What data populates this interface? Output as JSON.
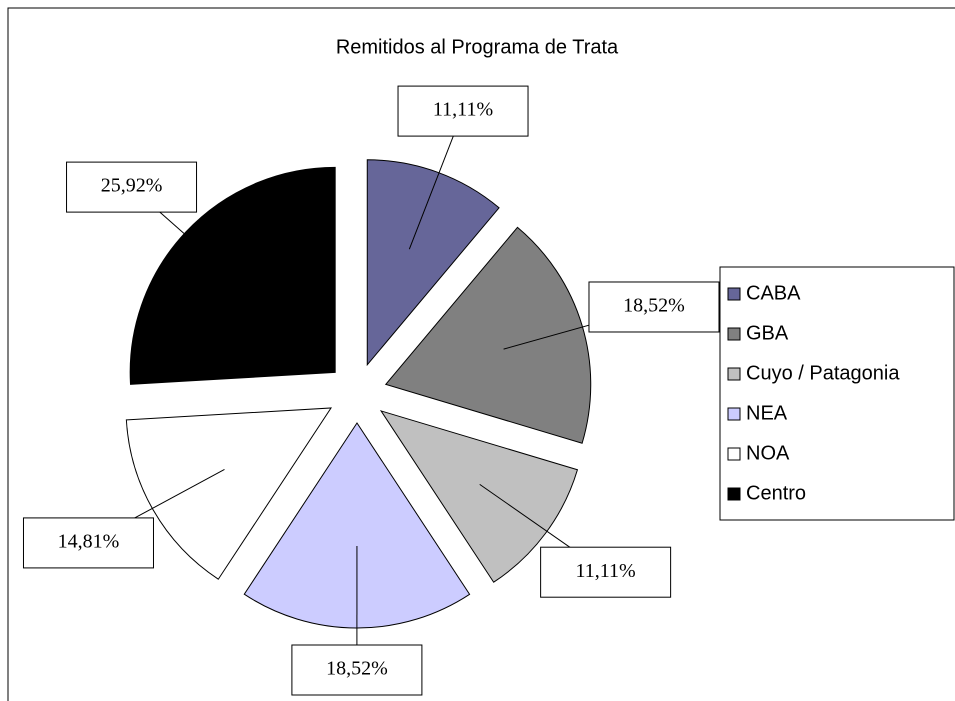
{
  "chart_data": {
    "type": "pie",
    "title": "Remitidos al Programa de Trata",
    "categories": [
      "CABA",
      "GBA",
      "Cuyo / Patagonia",
      "NEA",
      "NOA",
      "Centro"
    ],
    "values": [
      11.11,
      18.52,
      11.11,
      18.52,
      14.81,
      25.92
    ],
    "value_labels": [
      "11,11%",
      "18,52%",
      "11,11%",
      "18,52%",
      "14,81%",
      "25,92%"
    ],
    "colors": [
      "#666699",
      "#808080",
      "#c0c0c0",
      "#ccccff",
      "#ffffff",
      "#000000"
    ],
    "legend": "right"
  }
}
